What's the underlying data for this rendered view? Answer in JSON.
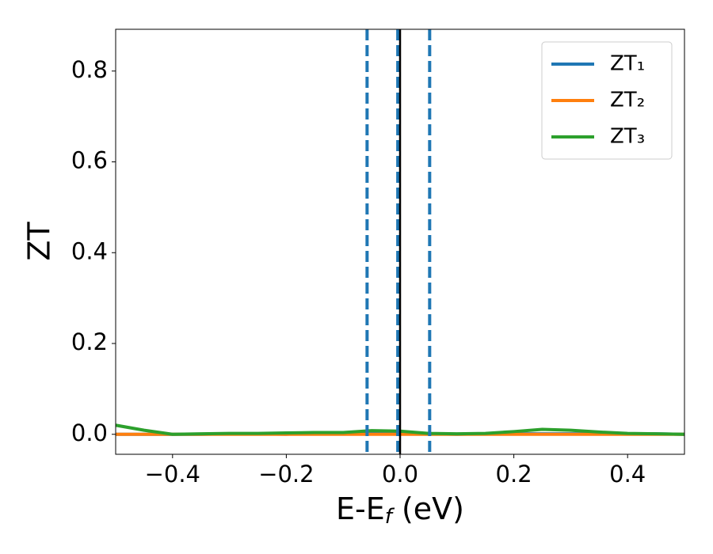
{
  "chart_data": {
    "type": "line",
    "x_label": [
      "E-E",
      "f",
      " (eV)"
    ],
    "y_label": "ZT",
    "x": [
      -0.5,
      -0.45,
      -0.4,
      -0.35,
      -0.3,
      -0.25,
      -0.2,
      -0.15,
      -0.1,
      -0.05,
      0,
      0.05,
      0.1,
      0.15,
      0.2,
      0.25,
      0.3,
      0.35,
      0.4,
      0.45,
      0.5
    ],
    "series": [
      {
        "name": "ZT₁",
        "color": "#1f77b4",
        "values": [
          0,
          0,
          0,
          0,
          0.001,
          0.001,
          0,
          0.004,
          0.003,
          0.002,
          0.001,
          0.001,
          0,
          0.001,
          0.001,
          0.001,
          0.001,
          0.001,
          0.001,
          0.001,
          0
        ]
      },
      {
        "name": "ZT₂",
        "color": "#ff7f0e",
        "values": [
          0,
          0,
          0,
          0,
          0,
          0,
          0,
          0,
          0,
          0,
          0,
          0,
          0,
          0,
          0,
          0,
          0,
          0,
          0,
          0,
          0
        ]
      },
      {
        "name": "ZT₃",
        "color": "#2ca02c",
        "values": [
          0.02,
          0.009,
          0,
          0.001,
          0.002,
          0.002,
          0.003,
          0.004,
          0.004,
          0.008,
          0.007,
          0.002,
          0.001,
          0.002,
          0.006,
          0.011,
          0.009,
          0.005,
          0.002,
          0.001,
          0
        ]
      }
    ],
    "vlines": [
      {
        "value": -0.058,
        "color": "#1f77b4",
        "style": "dashed"
      },
      {
        "value": -0.004,
        "color": "#1f77b4",
        "style": "dashed"
      },
      {
        "value": 0.052,
        "color": "#1f77b4",
        "style": "dashed"
      },
      {
        "value": 0,
        "color": "#000000",
        "style": "solid"
      }
    ],
    "xlim": [
      -0.5,
      0.5
    ],
    "ylim": [
      -0.044,
      0.892
    ],
    "xticks": [
      {
        "value": -0.4,
        "label": "−0.4"
      },
      {
        "value": -0.2,
        "label": "−0.2"
      },
      {
        "value": 0,
        "label": "0.0"
      },
      0.2,
      0.4
    ],
    "yticks": [
      {
        "value": 0,
        "label": "0.0"
      },
      0.2,
      0.4,
      0.6,
      0.8
    ],
    "grid": false,
    "legend": "upper right"
  }
}
